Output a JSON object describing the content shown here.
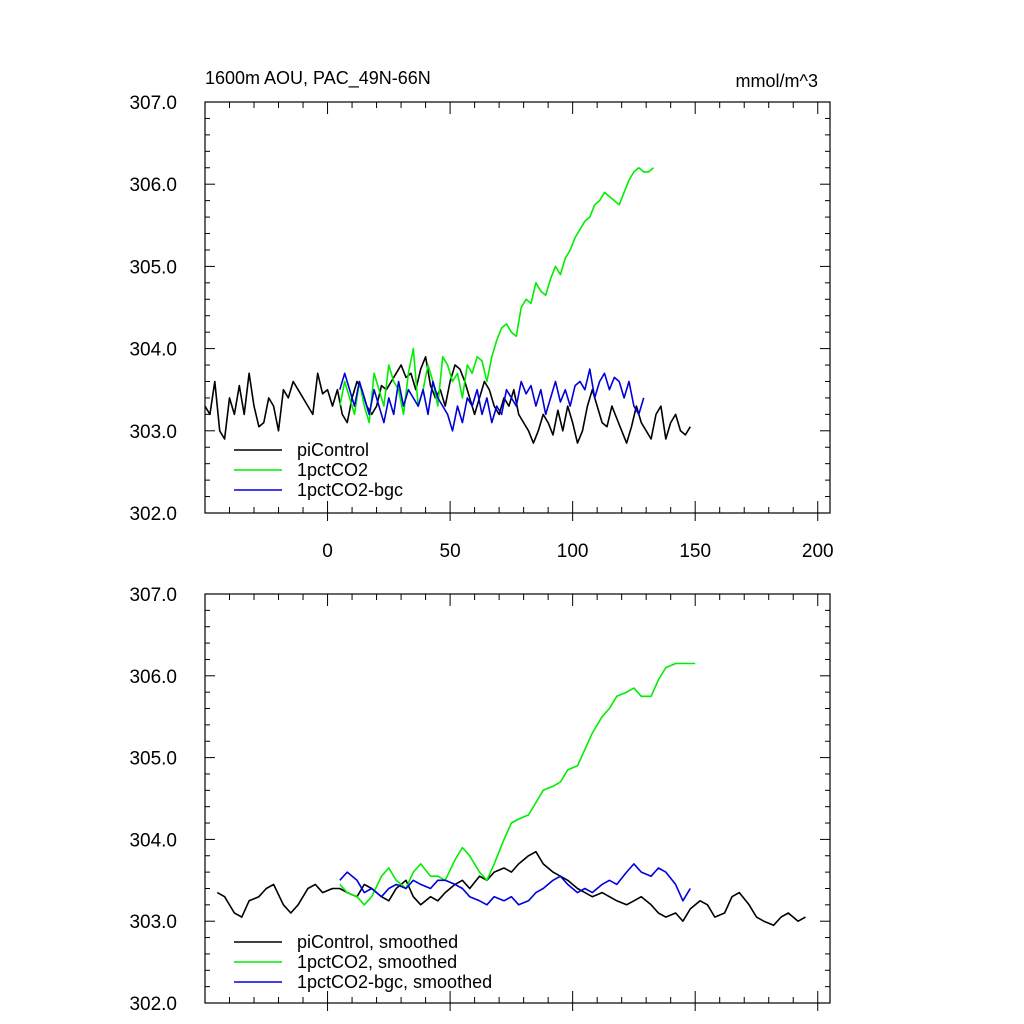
{
  "chart_data": [
    {
      "type": "line",
      "title": "1600m AOU, PAC_49N-66N",
      "units": "mmol/m^3",
      "xlim": [
        -50,
        205
      ],
      "ylim": [
        302.0,
        307.0
      ],
      "x_ticks": [
        0,
        50,
        100,
        150,
        200
      ],
      "x_tick_labels": [
        "0",
        "50",
        "100",
        "150",
        "200"
      ],
      "y_ticks": [
        302,
        303,
        304,
        305,
        306,
        307
      ],
      "y_tick_labels": [
        "302.0",
        "303.0",
        "304.0",
        "305.0",
        "306.0",
        "307.0"
      ],
      "legend": {
        "position": "bottom-left",
        "entries": [
          "piControl",
          "1pctCO2",
          "1pctCO2-bgc"
        ]
      },
      "series": [
        {
          "name": "piControl",
          "color": "#000000",
          "x_start": -50,
          "x_step": 2,
          "values": [
            303.3,
            303.2,
            303.6,
            303.0,
            302.9,
            303.4,
            303.2,
            303.55,
            303.2,
            303.7,
            303.3,
            303.05,
            303.1,
            303.4,
            303.3,
            303.0,
            303.5,
            303.4,
            303.6,
            303.5,
            303.4,
            303.3,
            303.2,
            303.7,
            303.45,
            303.5,
            303.3,
            303.5,
            303.2,
            303.1,
            303.4,
            303.6,
            303.5,
            303.3,
            303.2,
            303.3,
            303.55,
            303.5,
            303.6,
            303.7,
            303.8,
            303.65,
            303.7,
            303.5,
            303.75,
            303.9,
            303.55,
            303.4,
            303.5,
            303.3,
            303.6,
            303.8,
            303.75,
            303.6,
            303.4,
            303.2,
            303.4,
            303.6,
            303.5,
            303.3,
            303.2,
            303.4,
            303.3,
            303.5,
            303.2,
            303.1,
            303.0,
            302.85,
            303.0,
            303.2,
            303.1,
            302.95,
            303.25,
            303.0,
            303.3,
            303.1,
            302.85,
            303.0,
            303.3,
            303.5,
            303.3,
            303.1,
            303.05,
            303.3,
            303.15,
            303.0,
            302.85,
            303.05,
            303.3,
            303.1,
            303.0,
            302.9,
            303.2,
            303.3,
            302.9,
            303.1,
            303.2,
            303.0,
            302.95,
            303.05
          ]
        },
        {
          "name": "1pctCO2",
          "color": "#00ee00",
          "x_start": 5,
          "x_step": 2,
          "values": [
            303.3,
            303.6,
            303.4,
            303.2,
            303.6,
            303.3,
            303.1,
            303.7,
            303.5,
            303.3,
            303.8,
            303.6,
            303.5,
            303.2,
            303.7,
            304.0,
            303.3,
            303.5,
            303.8,
            303.6,
            303.3,
            303.9,
            303.8,
            303.6,
            303.7,
            303.4,
            303.8,
            303.7,
            303.9,
            303.85,
            303.6,
            303.9,
            304.1,
            304.25,
            304.3,
            304.2,
            304.15,
            304.5,
            304.6,
            304.55,
            304.8,
            304.7,
            304.65,
            304.85,
            305.0,
            304.9,
            305.1,
            305.2,
            305.35,
            305.45,
            305.55,
            305.6,
            305.75,
            305.8,
            305.9,
            305.85,
            305.8,
            305.75,
            305.9,
            306.05,
            306.15,
            306.2,
            306.15,
            306.15,
            306.2
          ]
        },
        {
          "name": "1pctCO2-bgc",
          "color": "#0000dd",
          "x_start": 5,
          "x_step": 2,
          "values": [
            303.5,
            303.7,
            303.5,
            303.3,
            303.6,
            303.4,
            303.2,
            303.5,
            303.3,
            303.1,
            303.4,
            303.2,
            303.6,
            303.3,
            303.5,
            303.4,
            303.3,
            303.5,
            303.2,
            303.6,
            303.4,
            303.3,
            303.2,
            303.0,
            303.3,
            303.1,
            303.4,
            303.3,
            303.5,
            303.2,
            303.4,
            303.1,
            303.3,
            303.2,
            303.5,
            303.4,
            303.3,
            303.6,
            303.45,
            303.55,
            303.3,
            303.5,
            303.2,
            303.4,
            303.6,
            303.35,
            303.5,
            303.3,
            303.55,
            303.6,
            303.5,
            303.75,
            303.4,
            303.6,
            303.7,
            303.5,
            303.65,
            303.6,
            303.4,
            303.6,
            303.3,
            303.2,
            303.4
          ]
        }
      ]
    },
    {
      "type": "line",
      "xlim": [
        -50,
        205
      ],
      "ylim": [
        302.0,
        307.0
      ],
      "x_ticks": [
        0,
        50,
        100,
        150,
        200
      ],
      "y_ticks": [
        302,
        303,
        304,
        305,
        306,
        307
      ],
      "y_tick_labels": [
        "302.0",
        "303.0",
        "304.0",
        "305.0",
        "306.0",
        "307.0"
      ],
      "legend": {
        "position": "bottom-left",
        "entries": [
          "piControl, smoothed",
          "1pctCO2, smoothed",
          "1pctCO2-bgc, smoothed"
        ]
      },
      "series": [
        {
          "name": "piControl, smoothed",
          "color": "#000000",
          "x": [
            -45,
            -42,
            -38,
            -35,
            -32,
            -28,
            -25,
            -22,
            -18,
            -15,
            -12,
            -8,
            -5,
            -2,
            2,
            5,
            8,
            12,
            15,
            18,
            22,
            25,
            28,
            32,
            35,
            38,
            42,
            45,
            48,
            52,
            55,
            58,
            62,
            65,
            68,
            72,
            75,
            78,
            82,
            85,
            88,
            92,
            95,
            98,
            102,
            105,
            108,
            112,
            115,
            118,
            122,
            125,
            128,
            132,
            135,
            138,
            142,
            145,
            148,
            152,
            155,
            158,
            162,
            165,
            168,
            172,
            175,
            178,
            182,
            185,
            188,
            192,
            195
          ],
          "values": [
            303.35,
            303.3,
            303.1,
            303.05,
            303.25,
            303.3,
            303.4,
            303.45,
            303.2,
            303.1,
            303.2,
            303.4,
            303.45,
            303.35,
            303.4,
            303.4,
            303.35,
            303.3,
            303.45,
            303.4,
            303.3,
            303.25,
            303.4,
            303.5,
            303.3,
            303.2,
            303.3,
            303.25,
            303.35,
            303.45,
            303.5,
            303.4,
            303.55,
            303.5,
            303.6,
            303.65,
            303.6,
            303.7,
            303.8,
            303.85,
            303.7,
            303.6,
            303.55,
            303.5,
            303.4,
            303.35,
            303.3,
            303.35,
            303.3,
            303.25,
            303.2,
            303.25,
            303.3,
            303.2,
            303.1,
            303.05,
            303.1,
            303.0,
            303.15,
            303.25,
            303.2,
            303.05,
            303.1,
            303.3,
            303.35,
            303.2,
            303.05,
            303.0,
            302.95,
            303.05,
            303.1,
            303.0,
            303.05
          ]
        },
        {
          "name": "1pctCO2, smoothed",
          "color": "#00ee00",
          "x": [
            5,
            8,
            12,
            15,
            18,
            22,
            25,
            28,
            32,
            35,
            38,
            42,
            45,
            48,
            52,
            55,
            58,
            62,
            65,
            68,
            72,
            75,
            78,
            82,
            85,
            88,
            92,
            95,
            98,
            102,
            105,
            108,
            112,
            115,
            118,
            122,
            125,
            128,
            132,
            135,
            138,
            142,
            145,
            148,
            150
          ],
          "values": [
            303.45,
            303.35,
            303.3,
            303.2,
            303.3,
            303.55,
            303.65,
            303.5,
            303.4,
            303.6,
            303.7,
            303.55,
            303.55,
            303.5,
            303.75,
            303.9,
            303.8,
            303.6,
            303.5,
            303.7,
            304.0,
            304.2,
            304.25,
            304.3,
            304.45,
            304.6,
            304.65,
            304.7,
            304.85,
            304.9,
            305.1,
            305.3,
            305.5,
            305.6,
            305.75,
            305.8,
            305.85,
            305.75,
            305.75,
            305.95,
            306.1,
            306.15,
            306.15,
            306.15,
            306.15
          ]
        },
        {
          "name": "1pctCO2-bgc, smoothed",
          "color": "#0000dd",
          "x": [
            5,
            8,
            12,
            15,
            18,
            22,
            25,
            28,
            32,
            35,
            38,
            42,
            45,
            48,
            52,
            55,
            58,
            62,
            65,
            68,
            72,
            75,
            78,
            82,
            85,
            88,
            92,
            95,
            98,
            102,
            105,
            108,
            112,
            115,
            118,
            122,
            125,
            128,
            132,
            135,
            138,
            142,
            145,
            148
          ],
          "values": [
            303.5,
            303.6,
            303.5,
            303.35,
            303.4,
            303.3,
            303.4,
            303.45,
            303.4,
            303.5,
            303.45,
            303.4,
            303.5,
            303.5,
            303.45,
            303.4,
            303.3,
            303.25,
            303.2,
            303.3,
            303.25,
            303.3,
            303.2,
            303.25,
            303.35,
            303.4,
            303.5,
            303.55,
            303.45,
            303.35,
            303.4,
            303.35,
            303.45,
            303.5,
            303.45,
            303.6,
            303.7,
            303.6,
            303.55,
            303.65,
            303.6,
            303.45,
            303.25,
            303.4
          ]
        }
      ]
    }
  ]
}
